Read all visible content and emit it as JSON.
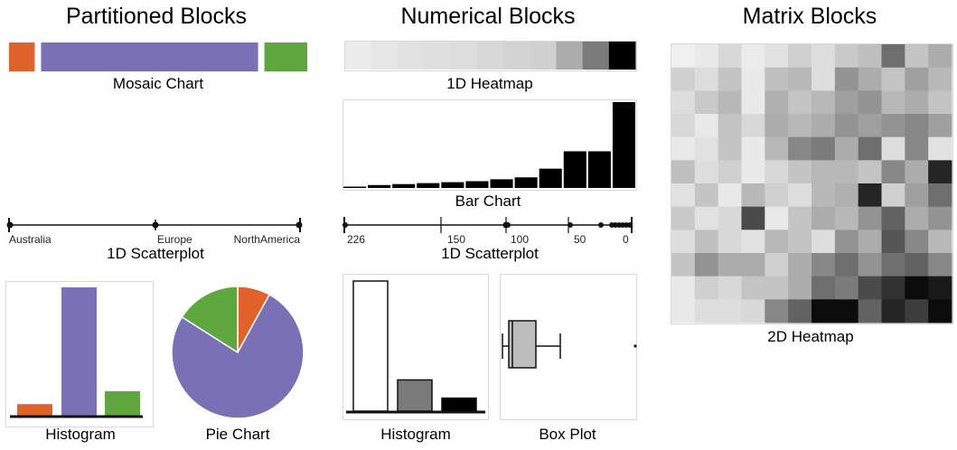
{
  "colors": {
    "orange": "#e0622a",
    "purple": "#7a70b6",
    "green": "#5ea63e",
    "axis": "#111111"
  },
  "partitioned": {
    "title": "Partitioned Blocks",
    "mosaic_caption": "Mosaic Chart",
    "mosaic_values": [
      0.09,
      0.76,
      0.15
    ],
    "scatter_caption": "1D Scatterplot",
    "scatter_labels": [
      "Australia",
      "Europe",
      "NorthAmerica"
    ],
    "histogram_caption": "Histogram",
    "histogram_values": [
      0.09,
      1.0,
      0.19
    ],
    "pie_caption": "Pie Chart",
    "pie_values": [
      0.08,
      0.76,
      0.16
    ]
  },
  "numerical": {
    "title": "Numerical Blocks",
    "heatmap_caption": "1D Heatmap",
    "heatmap_values": [
      0.04,
      0.06,
      0.08,
      0.09,
      0.1,
      0.12,
      0.14,
      0.15,
      0.3,
      0.5,
      1.0
    ],
    "bar_caption": "Bar Chart",
    "bar_values": [
      1,
      3,
      4,
      5,
      6,
      7,
      9,
      11,
      20,
      38,
      38,
      89
    ],
    "scatter_caption": "1D Scatterplot",
    "scatter_ticks": [
      "226",
      "150",
      "100",
      "50",
      "0"
    ],
    "histogram_caption": "Histogram",
    "histogram_values": [
      1.0,
      0.24,
      0.1
    ],
    "boxplot_caption": "Box Plot"
  },
  "matrix": {
    "title": "Matrix Blocks",
    "heatmap_caption": "2D Heatmap",
    "grid": [
      [
        0.02,
        0.05,
        0.12,
        0.04,
        0.08,
        0.15,
        0.1,
        0.18,
        0.22,
        0.55,
        0.2,
        0.3
      ],
      [
        0.15,
        0.1,
        0.2,
        0.05,
        0.22,
        0.25,
        0.1,
        0.4,
        0.3,
        0.2,
        0.35,
        0.25
      ],
      [
        0.1,
        0.18,
        0.25,
        0.05,
        0.28,
        0.2,
        0.25,
        0.35,
        0.4,
        0.25,
        0.3,
        0.2
      ],
      [
        0.12,
        0.05,
        0.2,
        0.12,
        0.3,
        0.25,
        0.3,
        0.4,
        0.35,
        0.4,
        0.45,
        0.35
      ],
      [
        0.05,
        0.08,
        0.2,
        0.05,
        0.25,
        0.45,
        0.5,
        0.3,
        0.55,
        0.1,
        0.45,
        0.08
      ],
      [
        0.22,
        0.1,
        0.15,
        0.05,
        0.12,
        0.2,
        0.25,
        0.25,
        0.2,
        0.45,
        0.3,
        0.85
      ],
      [
        0.08,
        0.2,
        0.05,
        0.25,
        0.15,
        0.1,
        0.25,
        0.28,
        0.85,
        0.15,
        0.35,
        0.55
      ],
      [
        0.18,
        0.08,
        0.12,
        0.7,
        0.05,
        0.2,
        0.3,
        0.25,
        0.4,
        0.6,
        0.3,
        0.4
      ],
      [
        0.1,
        0.22,
        0.12,
        0.08,
        0.25,
        0.2,
        0.1,
        0.4,
        0.3,
        0.65,
        0.45,
        0.25
      ],
      [
        0.2,
        0.4,
        0.3,
        0.3,
        0.15,
        0.3,
        0.45,
        0.55,
        0.4,
        0.55,
        0.6,
        0.45
      ],
      [
        0.05,
        0.15,
        0.12,
        0.2,
        0.2,
        0.3,
        0.55,
        0.5,
        0.7,
        0.8,
        0.95,
        0.9
      ],
      [
        0.05,
        0.1,
        0.1,
        0.12,
        0.45,
        0.6,
        0.95,
        0.95,
        0.6,
        0.85,
        0.75,
        0.95
      ]
    ]
  }
}
